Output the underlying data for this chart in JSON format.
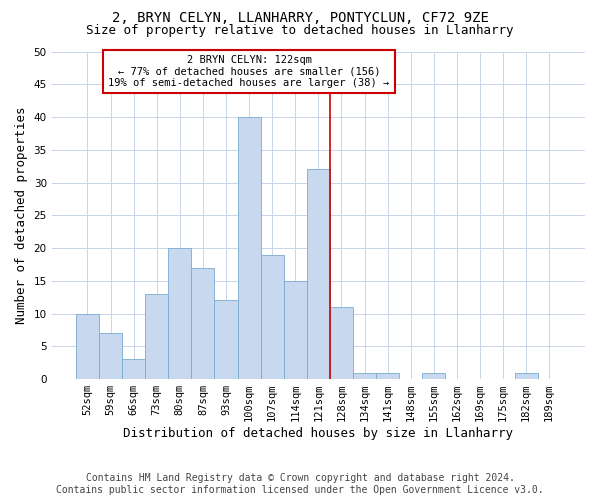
{
  "title": "2, BRYN CELYN, LLANHARRY, PONTYCLUN, CF72 9ZE",
  "subtitle": "Size of property relative to detached houses in Llanharry",
  "xlabel": "Distribution of detached houses by size in Llanharry",
  "ylabel": "Number of detached properties",
  "categories": [
    "52sqm",
    "59sqm",
    "66sqm",
    "73sqm",
    "80sqm",
    "87sqm",
    "93sqm",
    "100sqm",
    "107sqm",
    "114sqm",
    "121sqm",
    "128sqm",
    "134sqm",
    "141sqm",
    "148sqm",
    "155sqm",
    "162sqm",
    "169sqm",
    "175sqm",
    "182sqm",
    "189sqm"
  ],
  "values": [
    10,
    7,
    3,
    13,
    20,
    17,
    12,
    40,
    19,
    15,
    32,
    11,
    1,
    1,
    0,
    1,
    0,
    0,
    0,
    1,
    0
  ],
  "bar_color": "#c8d9ef",
  "bar_edge_color": "#7aabcf",
  "ylim": [
    0,
    50
  ],
  "yticks": [
    0,
    5,
    10,
    15,
    20,
    25,
    30,
    35,
    40,
    45,
    50
  ],
  "annotation_text_line1": "2 BRYN CELYN: 122sqm",
  "annotation_text_line2": "← 77% of detached houses are smaller (156)",
  "annotation_text_line3": "19% of semi-detached houses are larger (38) →",
  "annotation_box_color": "#ffffff",
  "annotation_box_edge_color": "#cc0000",
  "vline_color": "#cc0000",
  "footer_line1": "Contains HM Land Registry data © Crown copyright and database right 2024.",
  "footer_line2": "Contains public sector information licensed under the Open Government Licence v3.0.",
  "background_color": "#ffffff",
  "grid_color": "#c8d4e8",
  "title_fontsize": 10,
  "subtitle_fontsize": 9,
  "ylabel_fontsize": 9,
  "xlabel_fontsize": 9,
  "tick_fontsize": 7.5,
  "annotation_fontsize": 7.5,
  "footer_fontsize": 7
}
